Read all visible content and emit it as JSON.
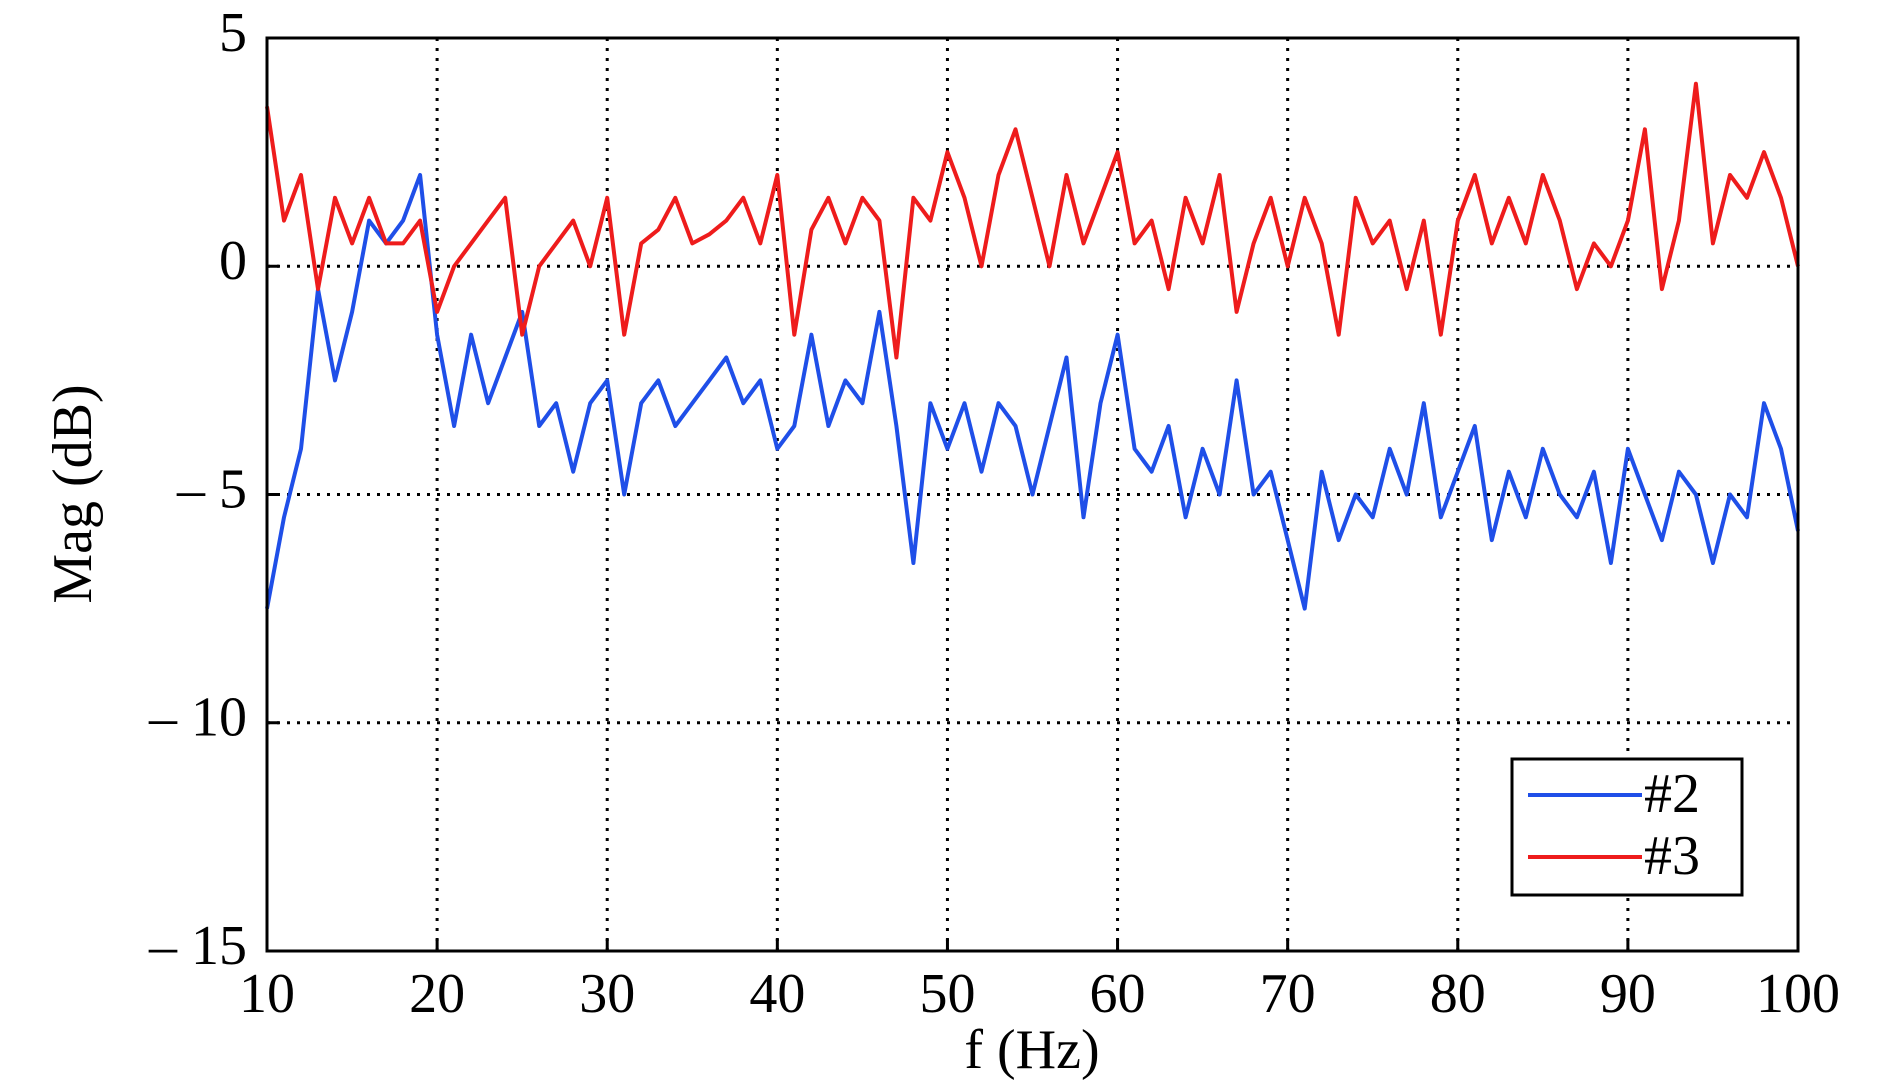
{
  "chart_data": {
    "type": "line",
    "xlabel": "f (Hz)",
    "ylabel": "Mag (dB)",
    "x": [
      10,
      11,
      12,
      13,
      14,
      15,
      16,
      17,
      18,
      19,
      20,
      21,
      22,
      23,
      24,
      25,
      26,
      27,
      28,
      29,
      30,
      31,
      32,
      33,
      34,
      35,
      36,
      37,
      38,
      39,
      40,
      41,
      42,
      43,
      44,
      45,
      46,
      47,
      48,
      49,
      50,
      51,
      52,
      53,
      54,
      55,
      56,
      57,
      58,
      59,
      60,
      61,
      62,
      63,
      64,
      65,
      66,
      67,
      68,
      69,
      70,
      71,
      72,
      73,
      74,
      75,
      76,
      77,
      78,
      79,
      80,
      81,
      82,
      83,
      84,
      85,
      86,
      87,
      88,
      89,
      90,
      91,
      92,
      93,
      94,
      95,
      96,
      97,
      98,
      99,
      100
    ],
    "series": [
      {
        "name": "#2",
        "color": "#1f4fe8",
        "values": [
          -7.5,
          -5.5,
          -4,
          -0.5,
          -2.5,
          -1,
          1,
          0.5,
          1,
          2,
          -1.5,
          -3.5,
          -1.5,
          -3,
          -2,
          -1,
          -3.5,
          -3,
          -4.5,
          -3,
          -2.5,
          -5,
          -3,
          -2.5,
          -3.5,
          -3,
          -2.5,
          -2,
          -3,
          -2.5,
          -4,
          -3.5,
          -1.5,
          -3.5,
          -2.5,
          -3,
          -1,
          -3.5,
          -6.5,
          -3,
          -4,
          -3,
          -4.5,
          -3,
          -3.5,
          -5,
          -3.5,
          -2,
          -5.5,
          -3,
          -1.5,
          -4,
          -4.5,
          -3.5,
          -5.5,
          -4,
          -5,
          -2.5,
          -5,
          -4.5,
          -6,
          -7.5,
          -4.5,
          -6,
          -5,
          -5.5,
          -4,
          -5,
          -3,
          -5.5,
          -4.5,
          -3.5,
          -6,
          -4.5,
          -5.5,
          -4,
          -5,
          -5.5,
          -4.5,
          -6.5,
          -4,
          -5,
          -6,
          -4.5,
          -5,
          -6.5,
          -5,
          -5.5,
          -3,
          -4,
          -5.8
        ]
      },
      {
        "name": "#3",
        "color": "#ee1c1c",
        "values": [
          3.5,
          1,
          2,
          -0.5,
          1.5,
          0.5,
          1.5,
          0.5,
          0.5,
          1,
          -1,
          0,
          0.5,
          1,
          1.5,
          -1.5,
          0,
          0.5,
          1,
          0,
          1.5,
          -1.5,
          0.5,
          0.8,
          1.5,
          0.5,
          0.7,
          1,
          1.5,
          0.5,
          2,
          -1.5,
          0.8,
          1.5,
          0.5,
          1.5,
          1,
          -2,
          1.5,
          1,
          2.5,
          1.5,
          0,
          2,
          3,
          1.5,
          0,
          2,
          0.5,
          1.5,
          2.5,
          0.5,
          1,
          -0.5,
          1.5,
          0.5,
          2,
          -1,
          0.5,
          1.5,
          0,
          1.5,
          0.5,
          -1.5,
          1.5,
          0.5,
          1,
          -0.5,
          1,
          -1.5,
          1,
          2,
          0.5,
          1.5,
          0.5,
          2,
          1,
          -0.5,
          0.5,
          0,
          1,
          3,
          -0.5,
          1,
          4,
          0.5,
          2,
          1.5,
          2.5,
          1.5,
          0
        ]
      }
    ],
    "xlim": [
      10,
      100
    ],
    "xticks": [
      10,
      20,
      30,
      40,
      50,
      60,
      70,
      80,
      90,
      100
    ],
    "ylim": [
      -15,
      5
    ],
    "yticks": [
      {
        "value": -15,
        "label": "– 15"
      },
      {
        "value": -10,
        "label": "– 10"
      },
      {
        "value": -5,
        "label": "– 5"
      },
      0,
      5
    ],
    "grid": true,
    "legend": "lower right"
  }
}
